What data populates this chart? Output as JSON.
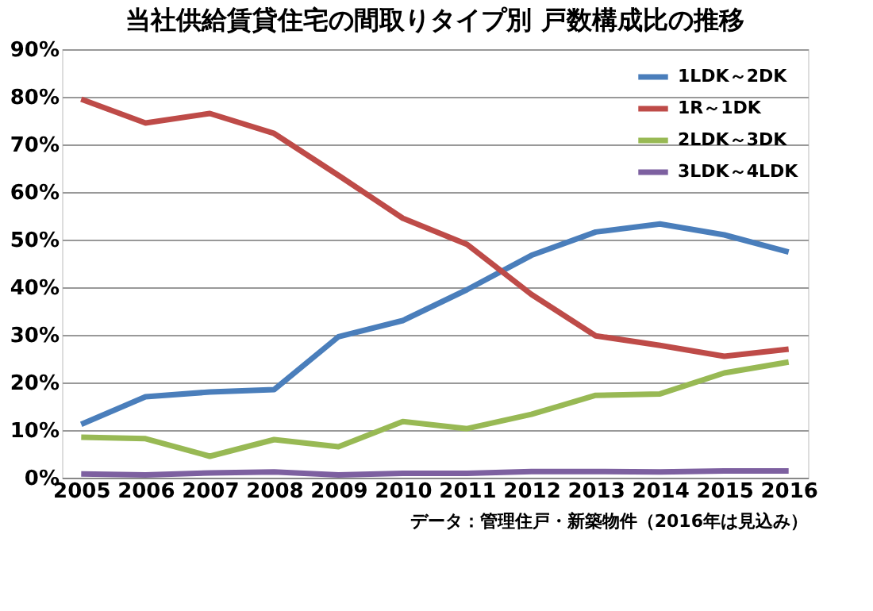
{
  "chart_data": {
    "type": "line",
    "title": "当社供給賃貸住宅の間取りタイプ別 戸数構成比の推移",
    "categories": [
      "2005",
      "2006",
      "2007",
      "2008",
      "2009",
      "2010",
      "2011",
      "2012",
      "2013",
      "2014",
      "2015",
      "2016"
    ],
    "series": [
      {
        "name": "1LDK～2DK",
        "color": "#4a7ebb",
        "values": [
          11.2,
          17,
          18,
          18.5,
          29.6,
          33,
          39.5,
          46.7,
          51.6,
          53.3,
          51,
          47.4
        ]
      },
      {
        "name": "1R～1DK",
        "color": "#be4b48",
        "values": [
          79.5,
          74.5,
          76.5,
          72.3,
          63.5,
          54.5,
          49,
          38.5,
          29.8,
          27.8,
          25.5,
          27
        ]
      },
      {
        "name": "2LDK～3DK",
        "color": "#98b954",
        "values": [
          8.5,
          8.2,
          4.5,
          8,
          6.5,
          11.8,
          10.3,
          13.3,
          17.3,
          17.6,
          22,
          24.3
        ]
      },
      {
        "name": "3LDK～4LDK",
        "color": "#7d60a0",
        "values": [
          0.8,
          0.6,
          1,
          1.2,
          0.6,
          0.9,
          0.9,
          1.3,
          1.3,
          1.2,
          1.4,
          1.4
        ]
      }
    ],
    "ylim": [
      0,
      90
    ],
    "yticks": [
      {
        "value": 0,
        "label": "0%"
      },
      {
        "value": 10,
        "label": "10%"
      },
      {
        "value": 20,
        "label": "20%"
      },
      {
        "value": 30,
        "label": "30%"
      },
      {
        "value": 40,
        "label": "40%"
      },
      {
        "value": 50,
        "label": "50%"
      },
      {
        "value": 60,
        "label": "60%"
      },
      {
        "value": 70,
        "label": "70%"
      },
      {
        "value": 80,
        "label": "80%"
      },
      {
        "value": 90,
        "label": "90%"
      }
    ],
    "grid": "y",
    "legend": "top right",
    "marker": "none",
    "line_style": "solid",
    "annotations": [
      "データ：管理住戸・新築物件（2016年は見込み）"
    ]
  }
}
